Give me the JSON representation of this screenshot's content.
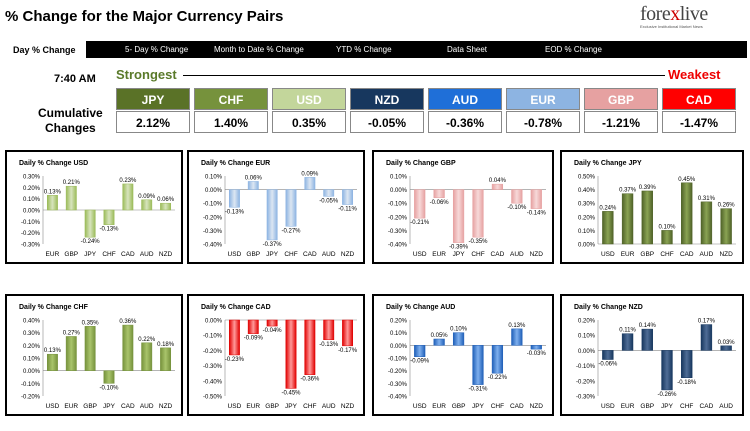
{
  "header": {
    "title": "% Change for the Major Currency Pairs",
    "logo_text_a": "fore",
    "logo_text_x": "x",
    "logo_text_b": "live",
    "logo_sub": "Exclusive Institutional Market News"
  },
  "nav": {
    "tabs": [
      "Day % Change",
      "5- Day % Change",
      "Month to Date % Change",
      "YTD % Change",
      "Data Sheet",
      "EOD % Change"
    ]
  },
  "summary": {
    "time": "7:40 AM",
    "strongest": "Strongest",
    "weakest": "Weakest",
    "cumulative_line1": "Cumulative",
    "cumulative_line2": "Changes",
    "currencies": [
      {
        "code": "JPY",
        "value": "2.12%",
        "color": "#5a7227"
      },
      {
        "code": "CHF",
        "value": "1.40%",
        "color": "#76923c"
      },
      {
        "code": "USD",
        "value": "0.35%",
        "color": "#c3d69b"
      },
      {
        "code": "NZD",
        "value": "-0.05%",
        "color": "#17375e"
      },
      {
        "code": "AUD",
        "value": "-0.36%",
        "color": "#1f6fd8"
      },
      {
        "code": "EUR",
        "value": "-0.78%",
        "color": "#8db4e2"
      },
      {
        "code": "GBP",
        "value": "-1.21%",
        "color": "#e6a1a1"
      },
      {
        "code": "CAD",
        "value": "-1.47%",
        "color": "#ff0000"
      }
    ]
  },
  "chart_data": [
    {
      "type": "bar",
      "title": "Daily % Change USD",
      "categories": [
        "EUR",
        "GBP",
        "JPY",
        "CHF",
        "CAD",
        "AUD",
        "NZD"
      ],
      "values": [
        0.13,
        0.21,
        -0.24,
        -0.13,
        0.23,
        0.09,
        0.06
      ],
      "labels": [
        "0.13%",
        "0.21%",
        "-0.24%",
        "-0.13%",
        "0.23%",
        "0.09%",
        "0.06%"
      ],
      "ylim": [
        -0.3,
        0.3
      ],
      "ticks": [
        "0.30%",
        "0.20%",
        "0.10%",
        "0.00%",
        "-0.10%",
        "-0.20%",
        "-0.30%"
      ],
      "colors": {
        "top": "#d7e4bd",
        "bottom": "#9bbb59"
      }
    },
    {
      "type": "bar",
      "title": "Daily % Change EUR",
      "categories": [
        "USD",
        "GBP",
        "JPY",
        "CHF",
        "CAD",
        "AUD",
        "NZD"
      ],
      "values": [
        -0.13,
        0.06,
        -0.37,
        -0.27,
        0.09,
        -0.05,
        -0.11
      ],
      "labels": [
        "-0.13%",
        "0.06%",
        "-0.37%",
        "-0.27%",
        "0.09%",
        "-0.05%",
        "-0.11%"
      ],
      "ylim": [
        -0.4,
        0.1
      ],
      "ticks": [
        "0.10%",
        "0.00%",
        "-0.10%",
        "-0.20%",
        "-0.30%",
        "-0.40%"
      ],
      "colors": {
        "top": "#dce6f2",
        "bottom": "#8db4e2"
      }
    },
    {
      "type": "bar",
      "title": "Daily % Change GBP",
      "categories": [
        "USD",
        "EUR",
        "JPY",
        "CHF",
        "CAD",
        "AUD",
        "NZD"
      ],
      "values": [
        -0.21,
        -0.06,
        -0.39,
        -0.35,
        0.04,
        -0.1,
        -0.14
      ],
      "labels": [
        "-0.21%",
        "-0.06%",
        "-0.39%",
        "-0.35%",
        "0.04%",
        "-0.10%",
        "-0.14%"
      ],
      "ylim": [
        -0.4,
        0.1
      ],
      "ticks": [
        "0.10%",
        "0.00%",
        "-0.10%",
        "-0.20%",
        "-0.30%",
        "-0.40%"
      ],
      "colors": {
        "top": "#f7d9d9",
        "bottom": "#e6a1a1"
      }
    },
    {
      "type": "bar",
      "title": "Daily % Change JPY",
      "categories": [
        "USD",
        "EUR",
        "GBP",
        "CHF",
        "CAD",
        "AUD",
        "NZD"
      ],
      "values": [
        0.24,
        0.37,
        0.39,
        0.1,
        0.45,
        0.31,
        0.26
      ],
      "labels": [
        "0.24%",
        "0.37%",
        "0.39%",
        "0.10%",
        "0.45%",
        "0.31%",
        "0.26%"
      ],
      "ylim": [
        0,
        0.5
      ],
      "ticks": [
        "0.50%",
        "0.40%",
        "0.30%",
        "0.20%",
        "0.10%",
        "0.00%"
      ],
      "colors": {
        "top": "#8aa353",
        "bottom": "#4f6228"
      }
    },
    {
      "type": "bar",
      "title": "Daily % Change CHF",
      "categories": [
        "USD",
        "EUR",
        "GBP",
        "JPY",
        "CAD",
        "AUD",
        "NZD"
      ],
      "values": [
        0.13,
        0.27,
        0.35,
        -0.1,
        0.36,
        0.22,
        0.18
      ],
      "labels": [
        "0.13%",
        "0.27%",
        "0.35%",
        "-0.10%",
        "0.36%",
        "0.22%",
        "0.18%"
      ],
      "ylim": [
        -0.2,
        0.4
      ],
      "ticks": [
        "0.40%",
        "0.30%",
        "0.20%",
        "0.10%",
        "0.00%",
        "-0.10%",
        "-0.20%"
      ],
      "colors": {
        "top": "#a9c46b",
        "bottom": "#76923c"
      }
    },
    {
      "type": "bar",
      "title": "Daily % Change CAD",
      "categories": [
        "USD",
        "EUR",
        "GBP",
        "JPY",
        "CHF",
        "AUD",
        "NZD"
      ],
      "values": [
        -0.23,
        -0.09,
        -0.04,
        -0.45,
        -0.36,
        -0.13,
        -0.17
      ],
      "labels": [
        "-0.23%",
        "-0.09%",
        "-0.04%",
        "-0.45%",
        "-0.36%",
        "-0.13%",
        "-0.17%"
      ],
      "ylim": [
        -0.5,
        0
      ],
      "ticks": [
        "0.00%",
        "-0.10%",
        "-0.20%",
        "-0.30%",
        "-0.40%",
        "-0.50%"
      ],
      "colors": {
        "top": "#ff9999",
        "bottom": "#e00000"
      }
    },
    {
      "type": "bar",
      "title": "Daily % Change AUD",
      "categories": [
        "USD",
        "EUR",
        "GBP",
        "JPY",
        "CHF",
        "CAD",
        "NZD"
      ],
      "values": [
        -0.09,
        0.05,
        0.1,
        -0.31,
        -0.22,
        0.13,
        -0.03
      ],
      "labels": [
        "-0.09%",
        "0.05%",
        "0.10%",
        "-0.31%",
        "-0.22%",
        "0.13%",
        "-0.03%"
      ],
      "ylim": [
        -0.4,
        0.2
      ],
      "ticks": [
        "0.20%",
        "0.10%",
        "0.00%",
        "-0.10%",
        "-0.20%",
        "-0.30%",
        "-0.40%"
      ],
      "colors": {
        "top": "#7fb0ee",
        "bottom": "#1f5fb8"
      }
    },
    {
      "type": "bar",
      "title": "Daily % Change NZD",
      "categories": [
        "USD",
        "EUR",
        "GBP",
        "JPY",
        "CHF",
        "CAD",
        "AUD"
      ],
      "values": [
        -0.06,
        0.11,
        0.14,
        -0.26,
        -0.18,
        0.17,
        0.03
      ],
      "labels": [
        "-0.06%",
        "0.11%",
        "0.14%",
        "-0.26%",
        "-0.18%",
        "0.17%",
        "0.03%"
      ],
      "ylim": [
        -0.3,
        0.2
      ],
      "ticks": [
        "0.20%",
        "0.10%",
        "0.00%",
        "-0.10%",
        "-0.20%",
        "-0.30%"
      ],
      "colors": {
        "top": "#4f6d96",
        "bottom": "#17375e"
      }
    }
  ]
}
